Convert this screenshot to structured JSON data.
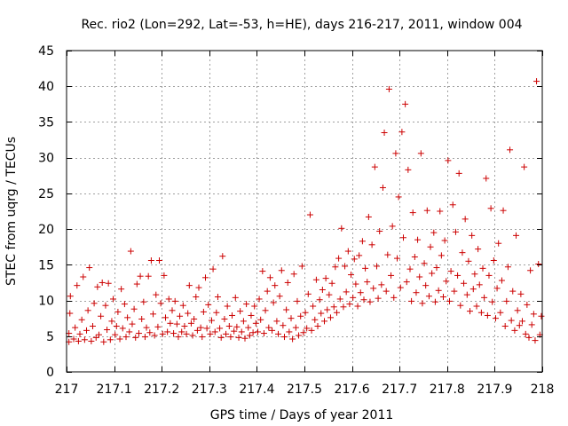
{
  "chart_data": {
    "type": "scatter",
    "title": "Rec. rio2 (Lon=292, Lat=-53, h=HE), days 216-217, 2011, window 004",
    "xlabel": "GPS time / Days of year 2011",
    "ylabel": "STEC from uqrg / TECUs",
    "xlim": [
      217,
      218
    ],
    "ylim": [
      0,
      45
    ],
    "xticks": [
      217,
      217.1,
      217.2,
      217.3,
      217.4,
      217.5,
      217.6,
      217.7,
      217.8,
      217.9,
      218
    ],
    "xtick_labels": [
      "217",
      "217.1",
      "217.2",
      "217.3",
      "217.4",
      "217.5",
      "217.6",
      "217.7",
      "217.8",
      "217.9",
      "218"
    ],
    "yticks": [
      0,
      5,
      10,
      15,
      20,
      25,
      30,
      35,
      40,
      45
    ],
    "ytick_labels": [
      "0",
      "5",
      "10",
      "15",
      "20",
      "25",
      "30",
      "35",
      "40",
      "45"
    ],
    "grid": true,
    "marker": "+",
    "marker_color": "#cc0000",
    "series": [
      {
        "name": "STEC",
        "points": [
          [
            217.005,
            4.2
          ],
          [
            217.005,
            5.4
          ],
          [
            217.007,
            8.2
          ],
          [
            217.008,
            10.6
          ],
          [
            217.015,
            4.6
          ],
          [
            217.018,
            6.2
          ],
          [
            217.022,
            12.1
          ],
          [
            217.025,
            4.3
          ],
          [
            217.028,
            5.3
          ],
          [
            217.032,
            7.3
          ],
          [
            217.035,
            13.3
          ],
          [
            217.038,
            4.5
          ],
          [
            217.042,
            5.8
          ],
          [
            217.045,
            8.6
          ],
          [
            217.048,
            14.6
          ],
          [
            217.052,
            4.3
          ],
          [
            217.055,
            6.4
          ],
          [
            217.058,
            9.6
          ],
          [
            217.062,
            4.8
          ],
          [
            217.065,
            11.9
          ],
          [
            217.068,
            5.2
          ],
          [
            217.072,
            7.8
          ],
          [
            217.075,
            12.5
          ],
          [
            217.078,
            4.2
          ],
          [
            217.082,
            9.3
          ],
          [
            217.085,
            5.9
          ],
          [
            217.088,
            12.4
          ],
          [
            217.092,
            4.5
          ],
          [
            217.095,
            7.1
          ],
          [
            217.098,
            10.2
          ],
          [
            217.102,
            5.2
          ],
          [
            217.105,
            6.4
          ],
          [
            217.108,
            8.4
          ],
          [
            217.112,
            4.6
          ],
          [
            217.115,
            11.6
          ],
          [
            217.118,
            6.1
          ],
          [
            217.122,
            9.5
          ],
          [
            217.125,
            4.9
          ],
          [
            217.128,
            7.6
          ],
          [
            217.132,
            5.6
          ],
          [
            217.135,
            16.9
          ],
          [
            217.138,
            6.7
          ],
          [
            217.142,
            8.8
          ],
          [
            217.145,
            4.8
          ],
          [
            217.148,
            12.3
          ],
          [
            217.152,
            5.4
          ],
          [
            217.155,
            13.4
          ],
          [
            217.158,
            7.4
          ],
          [
            217.162,
            9.8
          ],
          [
            217.165,
            4.9
          ],
          [
            217.168,
            6.2
          ],
          [
            217.172,
            13.4
          ],
          [
            217.175,
            5.5
          ],
          [
            217.178,
            15.6
          ],
          [
            217.182,
            8.1
          ],
          [
            217.185,
            5.1
          ],
          [
            217.188,
            10.8
          ],
          [
            217.192,
            6.3
          ],
          [
            217.195,
            15.6
          ],
          [
            217.198,
            9.6
          ],
          [
            217.202,
            5.3
          ],
          [
            217.205,
            13.5
          ],
          [
            217.208,
            7.6
          ],
          [
            217.212,
            5.6
          ],
          [
            217.215,
            10.2
          ],
          [
            217.218,
            6.8
          ],
          [
            217.222,
            8.6
          ],
          [
            217.225,
            5.4
          ],
          [
            217.228,
            9.9
          ],
          [
            217.232,
            6.7
          ],
          [
            217.235,
            4.9
          ],
          [
            217.238,
            7.8
          ],
          [
            217.242,
            5.6
          ],
          [
            217.245,
            9.3
          ],
          [
            217.248,
            6.4
          ],
          [
            217.252,
            5.3
          ],
          [
            217.255,
            8.2
          ],
          [
            217.258,
            12.1
          ],
          [
            217.262,
            6.8
          ],
          [
            217.265,
            5.1
          ],
          [
            217.268,
            7.4
          ],
          [
            217.272,
            10.5
          ],
          [
            217.275,
            5.8
          ],
          [
            217.278,
            11.8
          ],
          [
            217.282,
            6.2
          ],
          [
            217.285,
            4.9
          ],
          [
            217.288,
            8.4
          ],
          [
            217.292,
            13.2
          ],
          [
            217.295,
            6.1
          ],
          [
            217.298,
            9.4
          ],
          [
            217.302,
            5.3
          ],
          [
            217.305,
            7.2
          ],
          [
            217.308,
            14.4
          ],
          [
            217.312,
            5.6
          ],
          [
            217.315,
            8.3
          ],
          [
            217.318,
            10.5
          ],
          [
            217.322,
            6.1
          ],
          [
            217.325,
            4.8
          ],
          [
            217.328,
            16.2
          ],
          [
            217.332,
            7.4
          ],
          [
            217.335,
            5.3
          ],
          [
            217.338,
            9.2
          ],
          [
            217.342,
            6.4
          ],
          [
            217.345,
            4.9
          ],
          [
            217.348,
            7.9
          ],
          [
            217.352,
            5.7
          ],
          [
            217.355,
            10.4
          ],
          [
            217.358,
            6.3
          ],
          [
            217.362,
            4.8
          ],
          [
            217.365,
            8.5
          ],
          [
            217.368,
            5.6
          ],
          [
            217.372,
            7.1
          ],
          [
            217.375,
            4.7
          ],
          [
            217.378,
            9.5
          ],
          [
            217.382,
            6.2
          ],
          [
            217.385,
            5.1
          ],
          [
            217.388,
            7.9
          ],
          [
            217.392,
            5.5
          ],
          [
            217.395,
            9.2
          ],
          [
            217.398,
            6.8
          ],
          [
            217.402,
            5.6
          ],
          [
            217.405,
            10.2
          ],
          [
            217.408,
            7.3
          ],
          [
            217.412,
            14.1
          ],
          [
            217.415,
            5.4
          ],
          [
            217.418,
            8.6
          ],
          [
            217.422,
            11.3
          ],
          [
            217.425,
            6.2
          ],
          [
            217.428,
            13.2
          ],
          [
            217.432,
            5.8
          ],
          [
            217.435,
            9.7
          ],
          [
            217.438,
            12.1
          ],
          [
            217.442,
            7.1
          ],
          [
            217.445,
            5.3
          ],
          [
            217.448,
            10.6
          ],
          [
            217.452,
            14.2
          ],
          [
            217.455,
            6.5
          ],
          [
            217.458,
            4.9
          ],
          [
            217.462,
            8.7
          ],
          [
            217.465,
            12.5
          ],
          [
            217.468,
            5.6
          ],
          [
            217.472,
            7.5
          ],
          [
            217.475,
            4.6
          ],
          [
            217.478,
            13.7
          ],
          [
            217.482,
            6.2
          ],
          [
            217.485,
            9.9
          ],
          [
            217.488,
            5.1
          ],
          [
            217.492,
            7.8
          ],
          [
            217.495,
            14.8
          ],
          [
            217.498,
            5.5
          ],
          [
            217.502,
            8.3
          ],
          [
            217.505,
            6.1
          ],
          [
            217.508,
            10.9
          ],
          [
            217.512,
            22.0
          ],
          [
            217.515,
            5.8
          ],
          [
            217.518,
            9.2
          ],
          [
            217.522,
            7.3
          ],
          [
            217.525,
            12.9
          ],
          [
            217.528,
            6.4
          ],
          [
            217.532,
            10.1
          ],
          [
            217.535,
            8.2
          ],
          [
            217.538,
            11.5
          ],
          [
            217.542,
            7.1
          ],
          [
            217.545,
            13.1
          ],
          [
            217.548,
            8.7
          ],
          [
            217.552,
            10.8
          ],
          [
            217.555,
            7.6
          ],
          [
            217.558,
            12.4
          ],
          [
            217.562,
            9.1
          ],
          [
            217.565,
            14.7
          ],
          [
            217.568,
            8.3
          ],
          [
            217.572,
            15.9
          ],
          [
            217.575,
            10.2
          ],
          [
            217.578,
            20.1
          ],
          [
            217.582,
            9.1
          ],
          [
            217.585,
            14.8
          ],
          [
            217.588,
            11.2
          ],
          [
            217.592,
            16.9
          ],
          [
            217.595,
            9.5
          ],
          [
            217.598,
            13.6
          ],
          [
            217.602,
            10.4
          ],
          [
            217.605,
            15.8
          ],
          [
            217.608,
            12.3
          ],
          [
            217.612,
            9.2
          ],
          [
            217.615,
            16.3
          ],
          [
            217.618,
            11.1
          ],
          [
            217.622,
            18.3
          ],
          [
            217.625,
            10.1
          ],
          [
            217.628,
            14.5
          ],
          [
            217.632,
            12.6
          ],
          [
            217.635,
            21.7
          ],
          [
            217.638,
            9.8
          ],
          [
            217.642,
            17.8
          ],
          [
            217.645,
            11.7
          ],
          [
            217.648,
            28.7
          ],
          [
            217.652,
            14.8
          ],
          [
            217.655,
            10.3
          ],
          [
            217.658,
            19.7
          ],
          [
            217.662,
            12.2
          ],
          [
            217.665,
            25.8
          ],
          [
            217.668,
            33.5
          ],
          [
            217.672,
            11.3
          ],
          [
            217.675,
            16.4
          ],
          [
            217.678,
            39.6
          ],
          [
            217.682,
            13.5
          ],
          [
            217.685,
            20.4
          ],
          [
            217.688,
            10.4
          ],
          [
            217.692,
            30.6
          ],
          [
            217.695,
            15.9
          ],
          [
            217.698,
            24.5
          ],
          [
            217.702,
            11.8
          ],
          [
            217.705,
            33.6
          ],
          [
            217.708,
            18.8
          ],
          [
            217.712,
            37.5
          ],
          [
            217.715,
            12.6
          ],
          [
            217.718,
            28.3
          ],
          [
            217.722,
            14.4
          ],
          [
            217.725,
            9.9
          ],
          [
            217.728,
            22.3
          ],
          [
            217.732,
            16.1
          ],
          [
            217.735,
            11.1
          ],
          [
            217.738,
            18.5
          ],
          [
            217.742,
            13.3
          ],
          [
            217.745,
            30.6
          ],
          [
            217.748,
            9.6
          ],
          [
            217.752,
            15.2
          ],
          [
            217.755,
            12.1
          ],
          [
            217.758,
            22.6
          ],
          [
            217.762,
            10.6
          ],
          [
            217.765,
            17.5
          ],
          [
            217.768,
            13.8
          ],
          [
            217.772,
            19.5
          ],
          [
            217.775,
            9.8
          ],
          [
            217.778,
            14.6
          ],
          [
            217.782,
            11.4
          ],
          [
            217.785,
            22.5
          ],
          [
            217.788,
            16.3
          ],
          [
            217.792,
            10.5
          ],
          [
            217.795,
            18.4
          ],
          [
            217.798,
            12.7
          ],
          [
            217.802,
            29.6
          ],
          [
            217.805,
            9.9
          ],
          [
            217.808,
            14.1
          ],
          [
            217.812,
            23.4
          ],
          [
            217.815,
            11.3
          ],
          [
            217.818,
            19.6
          ],
          [
            217.822,
            13.5
          ],
          [
            217.825,
            27.8
          ],
          [
            217.828,
            9.3
          ],
          [
            217.832,
            16.7
          ],
          [
            217.835,
            12.4
          ],
          [
            217.838,
            21.4
          ],
          [
            217.842,
            10.8
          ],
          [
            217.845,
            15.5
          ],
          [
            217.848,
            8.5
          ],
          [
            217.852,
            19.1
          ],
          [
            217.855,
            11.6
          ],
          [
            217.858,
            13.7
          ],
          [
            217.862,
            9.2
          ],
          [
            217.865,
            17.2
          ],
          [
            217.868,
            12.2
          ],
          [
            217.872,
            8.3
          ],
          [
            217.875,
            14.5
          ],
          [
            217.878,
            10.4
          ],
          [
            217.882,
            27.1
          ],
          [
            217.885,
            7.9
          ],
          [
            217.888,
            13.5
          ],
          [
            217.892,
            22.9
          ],
          [
            217.895,
            9.8
          ],
          [
            217.898,
            15.6
          ],
          [
            217.902,
            7.5
          ],
          [
            217.905,
            11.7
          ],
          [
            217.908,
            18.0
          ],
          [
            217.912,
            8.3
          ],
          [
            217.915,
            12.8
          ],
          [
            217.918,
            22.6
          ],
          [
            217.922,
            6.4
          ],
          [
            217.925,
            9.9
          ],
          [
            217.928,
            14.7
          ],
          [
            217.932,
            31.1
          ],
          [
            217.935,
            7.2
          ],
          [
            217.938,
            11.3
          ],
          [
            217.942,
            5.8
          ],
          [
            217.945,
            19.1
          ],
          [
            217.948,
            8.6
          ],
          [
            217.952,
            6.5
          ],
          [
            217.955,
            10.9
          ],
          [
            217.958,
            7.1
          ],
          [
            217.962,
            28.7
          ],
          [
            217.965,
            5.3
          ],
          [
            217.968,
            9.4
          ],
          [
            217.972,
            4.8
          ],
          [
            217.975,
            14.2
          ],
          [
            217.978,
            6.6
          ],
          [
            217.982,
            8.1
          ],
          [
            217.985,
            4.4
          ],
          [
            217.988,
            40.7
          ],
          [
            217.992,
            15.1
          ],
          [
            217.995,
            5.2
          ],
          [
            217.998,
            7.8
          ]
        ]
      }
    ]
  }
}
